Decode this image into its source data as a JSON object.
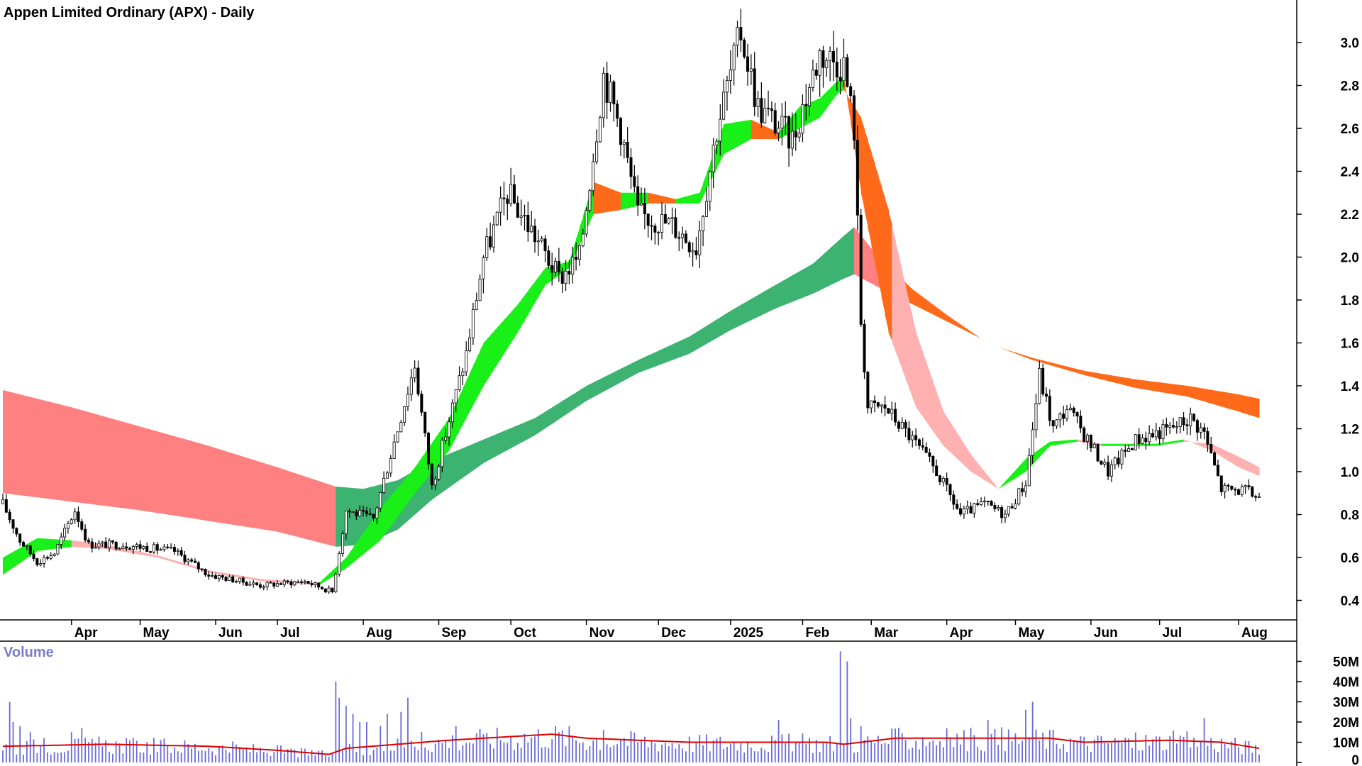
{
  "title": "Appen Limited Ordinary (APX) - Daily",
  "volume_title": "Volume",
  "colors": {
    "price_bar": "#000000",
    "volume_bar": "#6a6ad8",
    "volume_ma": "#e00000",
    "ribbon_fast_up": "#18f018",
    "ribbon_fast_down": "#ff6a1a",
    "ribbon_fast_light_down": "#ffb0b0",
    "ribbon_slow_up": "#3cb371",
    "ribbon_slow_down": "#ff6a1a",
    "ribbon_slow_light_down": "#ff8080",
    "axis": "#000000"
  },
  "chart_data": [
    {
      "type": "candlestick",
      "title": "Appen Limited Ordinary (APX) - Daily",
      "ylim": [
        0.3,
        3.1
      ],
      "y_ticks": [
        "3.0",
        "2.8",
        "2.6",
        "2.4",
        "2.2",
        "2.0",
        "1.8",
        "1.6",
        "1.4",
        "1.2",
        "1.0",
        "0.8",
        "0.6",
        "0.4"
      ],
      "y_tick_values": [
        3.0,
        2.8,
        2.6,
        2.4,
        2.2,
        2.0,
        1.8,
        1.6,
        1.4,
        1.2,
        1.0,
        0.8,
        0.6,
        0.4
      ],
      "x_ticks": [
        "Apr",
        "May",
        "Jun",
        "Jul",
        "Aug",
        "Sep",
        "Oct",
        "Nov",
        "Dec",
        "2025",
        "Feb",
        "Mar",
        "Apr",
        "May",
        "Jun",
        "Jul",
        "Aug"
      ],
      "x_tick_index": [
        20,
        40,
        62,
        80,
        105,
        127,
        148,
        170,
        191,
        212,
        233,
        253,
        275,
        295,
        317,
        337,
        360
      ],
      "close_keypoints": [
        [
          0,
          0.85
        ],
        [
          5,
          0.68
        ],
        [
          10,
          0.58
        ],
        [
          15,
          0.62
        ],
        [
          21,
          0.82
        ],
        [
          25,
          0.66
        ],
        [
          35,
          0.66
        ],
        [
          50,
          0.63
        ],
        [
          60,
          0.52
        ],
        [
          75,
          0.47
        ],
        [
          88,
          0.49
        ],
        [
          96,
          0.44
        ],
        [
          100,
          0.82
        ],
        [
          108,
          0.78
        ],
        [
          115,
          1.2
        ],
        [
          120,
          1.5
        ],
        [
          125,
          0.93
        ],
        [
          135,
          1.55
        ],
        [
          140,
          2.0
        ],
        [
          147,
          2.3
        ],
        [
          155,
          2.1
        ],
        [
          162,
          1.9
        ],
        [
          168,
          2.0
        ],
        [
          175,
          2.85
        ],
        [
          180,
          2.6
        ],
        [
          185,
          2.2
        ],
        [
          195,
          2.15
        ],
        [
          202,
          2.05
        ],
        [
          208,
          2.6
        ],
        [
          215,
          3.05
        ],
        [
          220,
          2.7
        ],
        [
          230,
          2.55
        ],
        [
          238,
          2.95
        ],
        [
          245,
          2.9
        ],
        [
          248,
          2.6
        ],
        [
          250,
          1.7
        ],
        [
          252,
          1.3
        ],
        [
          257,
          1.3
        ],
        [
          265,
          1.15
        ],
        [
          272,
          1.0
        ],
        [
          279,
          0.8
        ],
        [
          286,
          0.85
        ],
        [
          292,
          0.8
        ],
        [
          298,
          0.95
        ],
        [
          302,
          1.45
        ],
        [
          306,
          1.2
        ],
        [
          310,
          1.3
        ],
        [
          316,
          1.15
        ],
        [
          322,
          1.0
        ],
        [
          330,
          1.15
        ],
        [
          340,
          1.2
        ],
        [
          346,
          1.25
        ],
        [
          350,
          1.18
        ],
        [
          355,
          0.92
        ],
        [
          362,
          0.91
        ],
        [
          366,
          0.88
        ]
      ],
      "fast_ribbon_top": [
        [
          0,
          0.6
        ],
        [
          10,
          0.69
        ],
        [
          20,
          0.68
        ],
        [
          30,
          0.66
        ],
        [
          45,
          0.61
        ],
        [
          60,
          0.54
        ],
        [
          75,
          0.5
        ],
        [
          92,
          0.48
        ],
        [
          100,
          0.6
        ],
        [
          110,
          0.83
        ],
        [
          120,
          1.02
        ],
        [
          130,
          1.25
        ],
        [
          140,
          1.6
        ],
        [
          150,
          1.78
        ],
        [
          158,
          1.95
        ],
        [
          165,
          1.98
        ],
        [
          172,
          2.35
        ],
        [
          180,
          2.3
        ],
        [
          188,
          2.3
        ],
        [
          196,
          2.27
        ],
        [
          203,
          2.3
        ],
        [
          210,
          2.62
        ],
        [
          218,
          2.64
        ],
        [
          226,
          2.58
        ],
        [
          232,
          2.7
        ],
        [
          238,
          2.74
        ],
        [
          243,
          2.82
        ],
        [
          245,
          2.84
        ],
        [
          250,
          2.3
        ],
        [
          258,
          1.65
        ],
        [
          266,
          1.3
        ],
        [
          274,
          1.12
        ],
        [
          282,
          1.0
        ],
        [
          290,
          0.92
        ],
        [
          298,
          1.06
        ],
        [
          305,
          1.14
        ],
        [
          313,
          1.15
        ],
        [
          320,
          1.13
        ],
        [
          328,
          1.13
        ],
        [
          336,
          1.13
        ],
        [
          344,
          1.15
        ],
        [
          352,
          1.1
        ],
        [
          360,
          1.02
        ],
        [
          366,
          0.98
        ]
      ],
      "fast_ribbon_bottom": [
        [
          0,
          0.52
        ],
        [
          10,
          0.63
        ],
        [
          20,
          0.65
        ],
        [
          30,
          0.64
        ],
        [
          45,
          0.6
        ],
        [
          60,
          0.53
        ],
        [
          75,
          0.49
        ],
        [
          92,
          0.47
        ],
        [
          100,
          0.55
        ],
        [
          110,
          0.68
        ],
        [
          120,
          0.9
        ],
        [
          130,
          1.1
        ],
        [
          140,
          1.4
        ],
        [
          150,
          1.65
        ],
        [
          158,
          1.87
        ],
        [
          165,
          1.95
        ],
        [
          172,
          2.2
        ],
        [
          180,
          2.22
        ],
        [
          188,
          2.25
        ],
        [
          196,
          2.25
        ],
        [
          203,
          2.25
        ],
        [
          210,
          2.48
        ],
        [
          218,
          2.55
        ],
        [
          226,
          2.55
        ],
        [
          232,
          2.6
        ],
        [
          238,
          2.65
        ],
        [
          243,
          2.76
        ],
        [
          245,
          2.78
        ],
        [
          250,
          2.65
        ],
        [
          258,
          2.22
        ],
        [
          266,
          1.65
        ],
        [
          274,
          1.28
        ],
        [
          282,
          1.08
        ],
        [
          290,
          0.92
        ],
        [
          298,
          1.0
        ],
        [
          305,
          1.12
        ],
        [
          313,
          1.14
        ],
        [
          320,
          1.12
        ],
        [
          328,
          1.12
        ],
        [
          336,
          1.12
        ],
        [
          344,
          1.14
        ],
        [
          352,
          1.13
        ],
        [
          360,
          1.07
        ],
        [
          366,
          1.02
        ]
      ],
      "slow_ribbon_top": [
        [
          0,
          1.38
        ],
        [
          20,
          1.3
        ],
        [
          40,
          1.21
        ],
        [
          60,
          1.12
        ],
        [
          80,
          1.02
        ],
        [
          97,
          0.93
        ],
        [
          105,
          0.92
        ],
        [
          115,
          0.96
        ],
        [
          125,
          1.05
        ],
        [
          140,
          1.15
        ],
        [
          155,
          1.25
        ],
        [
          170,
          1.4
        ],
        [
          185,
          1.52
        ],
        [
          200,
          1.63
        ],
        [
          212,
          1.75
        ],
        [
          225,
          1.87
        ],
        [
          236,
          1.97
        ],
        [
          245,
          2.1
        ],
        [
          248,
          2.14
        ],
        [
          255,
          2.0
        ],
        [
          265,
          1.85
        ],
        [
          275,
          1.73
        ],
        [
          285,
          1.62
        ],
        [
          290,
          1.58
        ],
        [
          300,
          1.53
        ],
        [
          315,
          1.47
        ],
        [
          330,
          1.43
        ],
        [
          345,
          1.4
        ],
        [
          360,
          1.36
        ],
        [
          366,
          1.34
        ]
      ],
      "slow_ribbon_bottom": [
        [
          0,
          0.9
        ],
        [
          20,
          0.86
        ],
        [
          40,
          0.82
        ],
        [
          60,
          0.77
        ],
        [
          80,
          0.72
        ],
        [
          97,
          0.65
        ],
        [
          105,
          0.66
        ],
        [
          115,
          0.73
        ],
        [
          125,
          0.87
        ],
        [
          140,
          1.04
        ],
        [
          155,
          1.17
        ],
        [
          170,
          1.33
        ],
        [
          185,
          1.46
        ],
        [
          200,
          1.55
        ],
        [
          212,
          1.66
        ],
        [
          225,
          1.76
        ],
        [
          236,
          1.83
        ],
        [
          245,
          1.9
        ],
        [
          248,
          1.92
        ],
        [
          255,
          1.86
        ],
        [
          265,
          1.78
        ],
        [
          275,
          1.7
        ],
        [
          285,
          1.62
        ],
        [
          290,
          1.58
        ],
        [
          300,
          1.52
        ],
        [
          315,
          1.45
        ],
        [
          330,
          1.39
        ],
        [
          345,
          1.35
        ],
        [
          360,
          1.28
        ],
        [
          366,
          1.25
        ]
      ]
    },
    {
      "type": "bar",
      "title": "Volume",
      "ylim": [
        0,
        56
      ],
      "y_ticks": [
        "50M",
        "40M",
        "30M",
        "20M",
        "10M",
        "0"
      ],
      "y_tick_values": [
        50,
        40,
        30,
        20,
        10,
        0
      ],
      "unit": "M",
      "volume_ma_keypoints": [
        [
          0,
          8
        ],
        [
          30,
          9
        ],
        [
          60,
          8
        ],
        [
          80,
          6
        ],
        [
          95,
          4
        ],
        [
          100,
          7
        ],
        [
          130,
          11
        ],
        [
          160,
          14
        ],
        [
          170,
          12
        ],
        [
          200,
          10
        ],
        [
          240,
          10
        ],
        [
          245,
          9
        ],
        [
          260,
          12
        ],
        [
          290,
          12
        ],
        [
          305,
          12
        ],
        [
          315,
          10
        ],
        [
          340,
          11
        ],
        [
          355,
          10
        ],
        [
          366,
          7
        ]
      ],
      "volume_spikes": [
        [
          2,
          30
        ],
        [
          3,
          20
        ],
        [
          5,
          18
        ],
        [
          8,
          15
        ],
        [
          12,
          12
        ],
        [
          20,
          15
        ],
        [
          23,
          17
        ],
        [
          97,
          40
        ],
        [
          98,
          32
        ],
        [
          100,
          28
        ],
        [
          102,
          24
        ],
        [
          104,
          20
        ],
        [
          106,
          20
        ],
        [
          110,
          18
        ],
        [
          112,
          24
        ],
        [
          116,
          25
        ],
        [
          118,
          32
        ],
        [
          122,
          15
        ],
        [
          132,
          18
        ],
        [
          140,
          14
        ],
        [
          175,
          16
        ],
        [
          181,
          12
        ],
        [
          226,
          21
        ],
        [
          244,
          55
        ],
        [
          246,
          50
        ],
        [
          247,
          22
        ],
        [
          250,
          18
        ],
        [
          287,
          21
        ],
        [
          298,
          26
        ],
        [
          300,
          30
        ],
        [
          350,
          22
        ]
      ]
    }
  ]
}
